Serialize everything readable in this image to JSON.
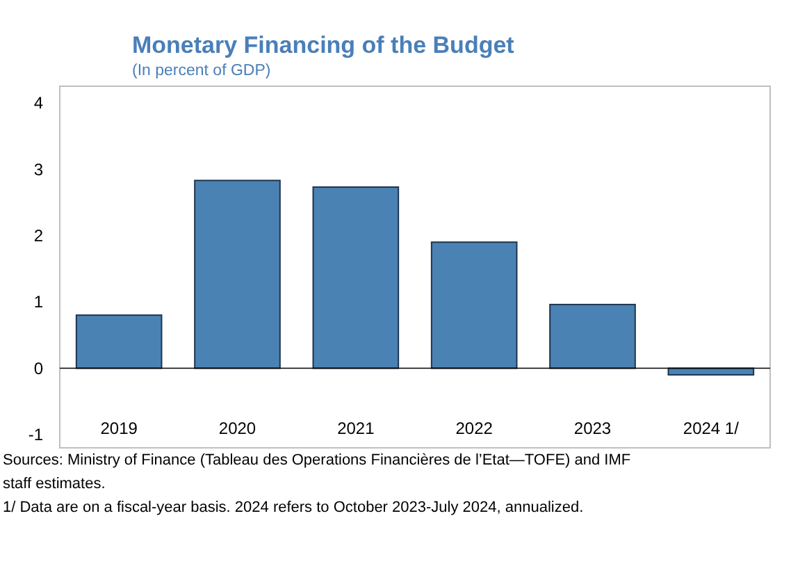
{
  "chart_data": {
    "type": "bar",
    "title": "Monetary Financing of the Budget",
    "subtitle": "(In percent of GDP)",
    "categories": [
      "2019",
      "2020",
      "2021",
      "2022",
      "2023",
      "2024 1/"
    ],
    "values": [
      0.8,
      2.83,
      2.73,
      1.9,
      0.96,
      -0.1
    ],
    "color": "#4a82b4",
    "ylim": [
      -1.2,
      4.25
    ],
    "yticks": [
      -1,
      0,
      1,
      2,
      3,
      4
    ],
    "grid": false,
    "ref_lines": [
      {
        "axis": "y",
        "value": 0,
        "color": "#000000"
      }
    ],
    "annotations": [
      "Sources: Ministry of Finance (Tableau des Operations Financières de l’Etat—TOFE) and IMF staff estimates.",
      "1/ Data are on a fiscal-year basis. 2024 refers to October 2023-July 2024, annualized."
    ]
  }
}
